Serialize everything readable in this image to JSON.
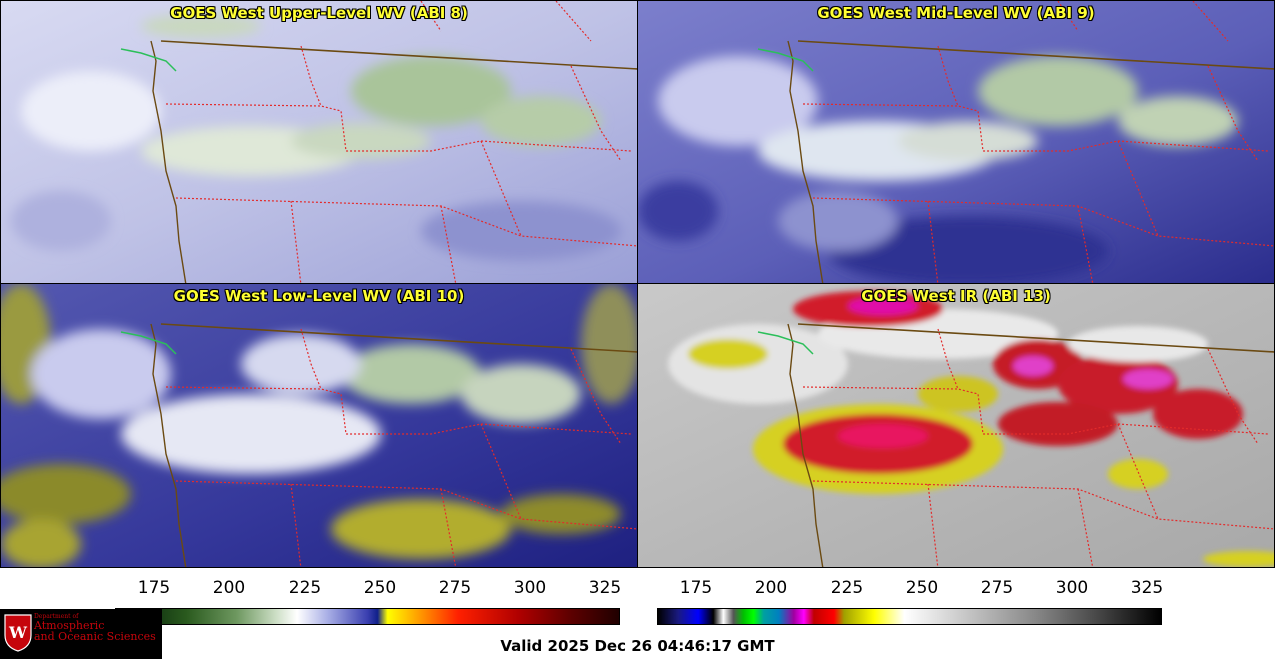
{
  "panels": [
    {
      "title": "GOES West Upper-Level WV (ABI 8)",
      "style": "wv-upper"
    },
    {
      "title": "GOES West Mid-Level WV (ABI 9)",
      "style": "wv-mid"
    },
    {
      "title": "GOES West Low-Level WV (ABI 10)",
      "style": "wv-low"
    },
    {
      "title": "GOES West IR (ABI 13)",
      "style": "ir"
    }
  ],
  "colorbars": [
    {
      "ticks": [
        "175",
        "200",
        "225",
        "250",
        "275",
        "300",
        "325"
      ],
      "range": [
        163,
        330
      ]
    },
    {
      "ticks": [
        "175",
        "200",
        "225",
        "250",
        "275",
        "300",
        "325"
      ],
      "range": [
        163,
        330
      ]
    }
  ],
  "valid": "Valid 2025 Dec 26 04:46:17 GMT",
  "logo": {
    "line1": "Department of",
    "line2": "Atmospheric",
    "line3": "and Oceanic Sciences"
  },
  "colors": {
    "title": "#ffff33",
    "state_border": "#e32b2b",
    "coast": "#6b4a12"
  }
}
